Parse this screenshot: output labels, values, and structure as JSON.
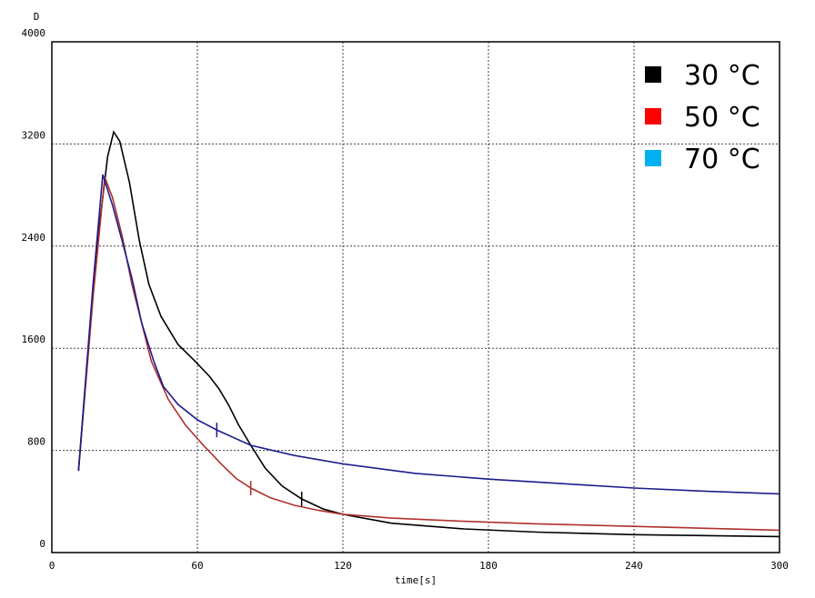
{
  "chart_data": {
    "type": "line",
    "y_label": "D",
    "x_label": "time[s]",
    "xlim": [
      0,
      300
    ],
    "xticks": [
      0,
      60,
      120,
      180,
      240,
      300
    ],
    "ylim": [
      0,
      4000
    ],
    "yticks": [
      0,
      800,
      1600,
      2400,
      3200,
      4000
    ],
    "grid": true,
    "legend_position": "upper right",
    "series": [
      {
        "name": "30 °C",
        "color": "#000000",
        "legend_color": "#000000",
        "marker_x": 103,
        "x": [
          11,
          18,
          23,
          25.5,
          28,
          32,
          36,
          40,
          45,
          52,
          59,
          65,
          69,
          73,
          77,
          82,
          88,
          95,
          103,
          112,
          120,
          140,
          170,
          200,
          240,
          300
        ],
        "values": [
          640,
          2300,
          3100,
          3295,
          3220,
          2900,
          2450,
          2100,
          1850,
          1630,
          1500,
          1380,
          1280,
          1150,
          1000,
          840,
          660,
          520,
          420,
          340,
          300,
          230,
          185,
          160,
          140,
          125
        ]
      },
      {
        "name": "50 °C",
        "color": "#b0302c",
        "legend_color": "#ff0000",
        "marker_x": 82,
        "x": [
          11,
          17,
          21.8,
          25,
          29,
          33,
          37,
          41,
          48,
          55,
          62,
          70,
          76,
          82,
          90,
          100,
          110,
          120,
          140,
          170,
          200,
          240,
          300
        ],
        "values": [
          640,
          2000,
          2940,
          2780,
          2480,
          2100,
          1800,
          1500,
          1200,
          1000,
          850,
          690,
          580,
          505,
          430,
          370,
          330,
          300,
          270,
          245,
          225,
          205,
          175
        ]
      },
      {
        "name": "70 °C",
        "color": "#1c1c8c",
        "legend_color": "#00b0f0",
        "marker_x": 68,
        "x": [
          11,
          17,
          21,
          25,
          29,
          33,
          37,
          42,
          46,
          52,
          60,
          68,
          82,
          100,
          120,
          150,
          180,
          210,
          240,
          270,
          300
        ],
        "values": [
          640,
          2100,
          2960,
          2720,
          2440,
          2150,
          1800,
          1500,
          1300,
          1160,
          1040,
          960,
          840,
          760,
          695,
          620,
          575,
          540,
          505,
          480,
          460
        ]
      }
    ]
  }
}
